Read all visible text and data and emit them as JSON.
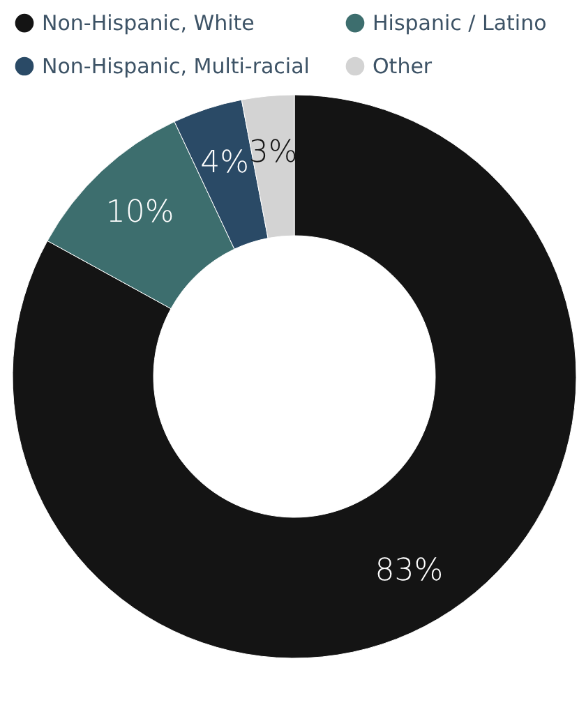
{
  "chart_data": {
    "type": "donut",
    "categories": [
      "Non-Hispanic, White",
      "Hispanic / Latino",
      "Non-Hispanic, Multi-racial",
      "Other"
    ],
    "values": [
      83,
      10,
      4,
      3
    ],
    "colors": [
      "#141414",
      "#3d6e6e",
      "#2a4a66",
      "#d3d3d3"
    ],
    "value_labels": [
      "83%",
      "10%",
      "4%",
      "3%"
    ],
    "legend": "top"
  }
}
